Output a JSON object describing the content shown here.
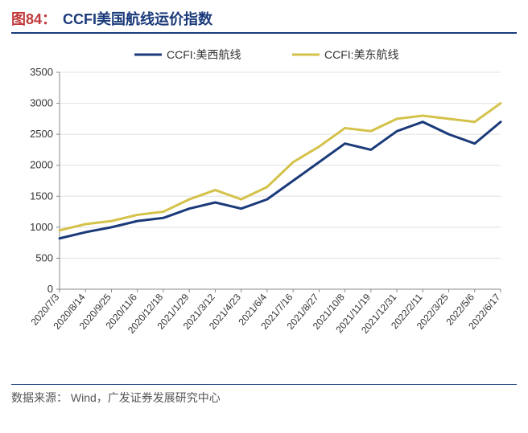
{
  "title_prefix": "图84：",
  "title_main": "CCFI美国航线运价指数",
  "source_label": "数据来源：",
  "source_value": "Wind，广发证券发展研究中心",
  "chart": {
    "type": "line",
    "background_color": "#ffffff",
    "grid_color": "#e0e0e0",
    "axis_color": "#888888",
    "ylim": [
      0,
      3500
    ],
    "ytick_step": 500,
    "yticks": [
      0,
      500,
      1000,
      1500,
      2000,
      2500,
      3000,
      3500
    ],
    "x_labels": [
      "2020/7/3",
      "2020/8/14",
      "2020/9/25",
      "2020/11/6",
      "2020/12/18",
      "2021/1/29",
      "2021/3/12",
      "2021/4/23",
      "2021/6/4",
      "2021/7/16",
      "2021/8/27",
      "2021/10/8",
      "2021/11/19",
      "2021/12/31",
      "2022/2/11",
      "2022/3/25",
      "2022/5/6",
      "2022/6/17"
    ],
    "legend_position": "top",
    "label_fontsize": 13,
    "x_label_fontsize": 12,
    "legend_fontsize": 14,
    "line_width": 3,
    "series": [
      {
        "name": "CCFI:美西航线",
        "color": "#1a3a7a",
        "values": [
          820,
          920,
          1000,
          1100,
          1150,
          1300,
          1400,
          1300,
          1450,
          1750,
          2050,
          2350,
          2250,
          2550,
          2700,
          2500,
          2350,
          2700
        ]
      },
      {
        "name": "CCFI:美东航线",
        "color": "#d4c24a",
        "values": [
          950,
          1050,
          1100,
          1200,
          1250,
          1450,
          1600,
          1450,
          1650,
          2050,
          2300,
          2600,
          2550,
          2750,
          2800,
          2750,
          2700,
          3000
        ]
      }
    ]
  }
}
